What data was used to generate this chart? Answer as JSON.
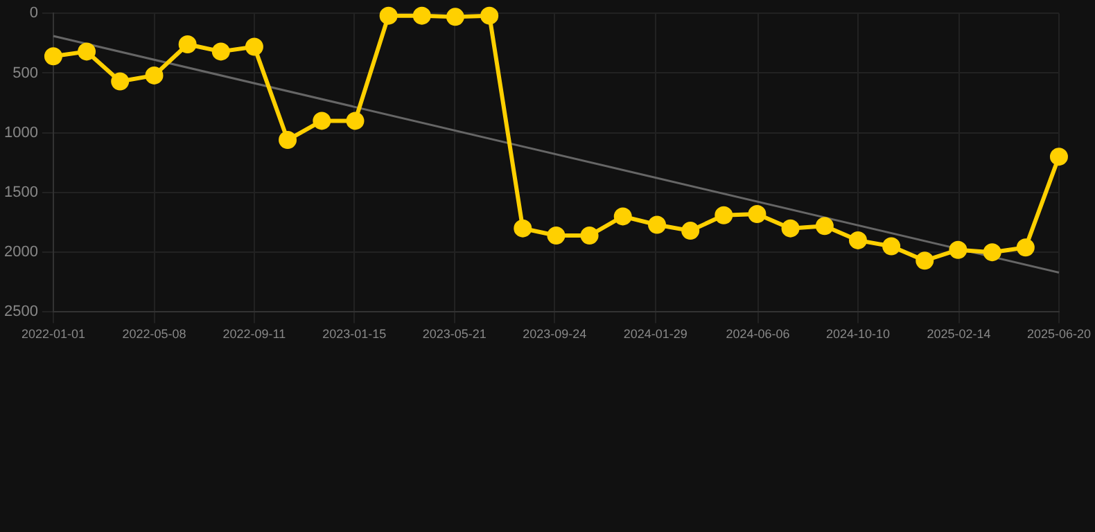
{
  "chart_data": {
    "type": "line",
    "x": [
      "2022-01-01",
      "2022-02-12",
      "2022-03-26",
      "2022-05-08",
      "2022-06-19",
      "2022-07-31",
      "2022-09-11",
      "2022-10-23",
      "2022-12-05",
      "2023-01-16",
      "2023-02-27",
      "2023-04-10",
      "2023-05-22",
      "2023-07-04",
      "2023-08-15",
      "2023-09-26",
      "2023-11-07",
      "2023-12-19",
      "2024-01-31",
      "2024-03-13",
      "2024-04-24",
      "2024-06-05",
      "2024-07-17",
      "2024-08-29",
      "2024-10-10",
      "2024-11-21",
      "2025-01-02",
      "2025-02-13",
      "2025-03-28",
      "2025-05-09",
      "2025-06-20"
    ],
    "series": [
      {
        "type": "line",
        "color": "#ffd000",
        "marker": "circle",
        "values": [
          360,
          320,
          570,
          520,
          260,
          320,
          280,
          1060,
          900,
          900,
          20,
          20,
          30,
          20,
          1800,
          1860,
          1860,
          1700,
          1770,
          1820,
          1690,
          1680,
          1800,
          1780,
          1900,
          1950,
          2070,
          1980,
          2000,
          1960,
          1200
        ]
      },
      {
        "type": "line",
        "color": "#666666",
        "marker": "none",
        "x": [
          "2022-01-01",
          "2025-06-20"
        ],
        "values": [
          190,
          2170
        ]
      }
    ],
    "ylim": [
      2500,
      0
    ],
    "yticks": [
      0,
      500,
      1000,
      1500,
      2000,
      2500
    ],
    "xlim": [
      "2022-01-01",
      "2025-06-20"
    ],
    "xticks": [
      "2022-01-01",
      "2022-05-08",
      "2022-09-11",
      "2023-01-15",
      "2023-05-21",
      "2023-09-24",
      "2024-01-29",
      "2024-06-06",
      "2024-10-10",
      "2025-02-14",
      "2025-06-20"
    ],
    "grid": true,
    "legend": false
  }
}
